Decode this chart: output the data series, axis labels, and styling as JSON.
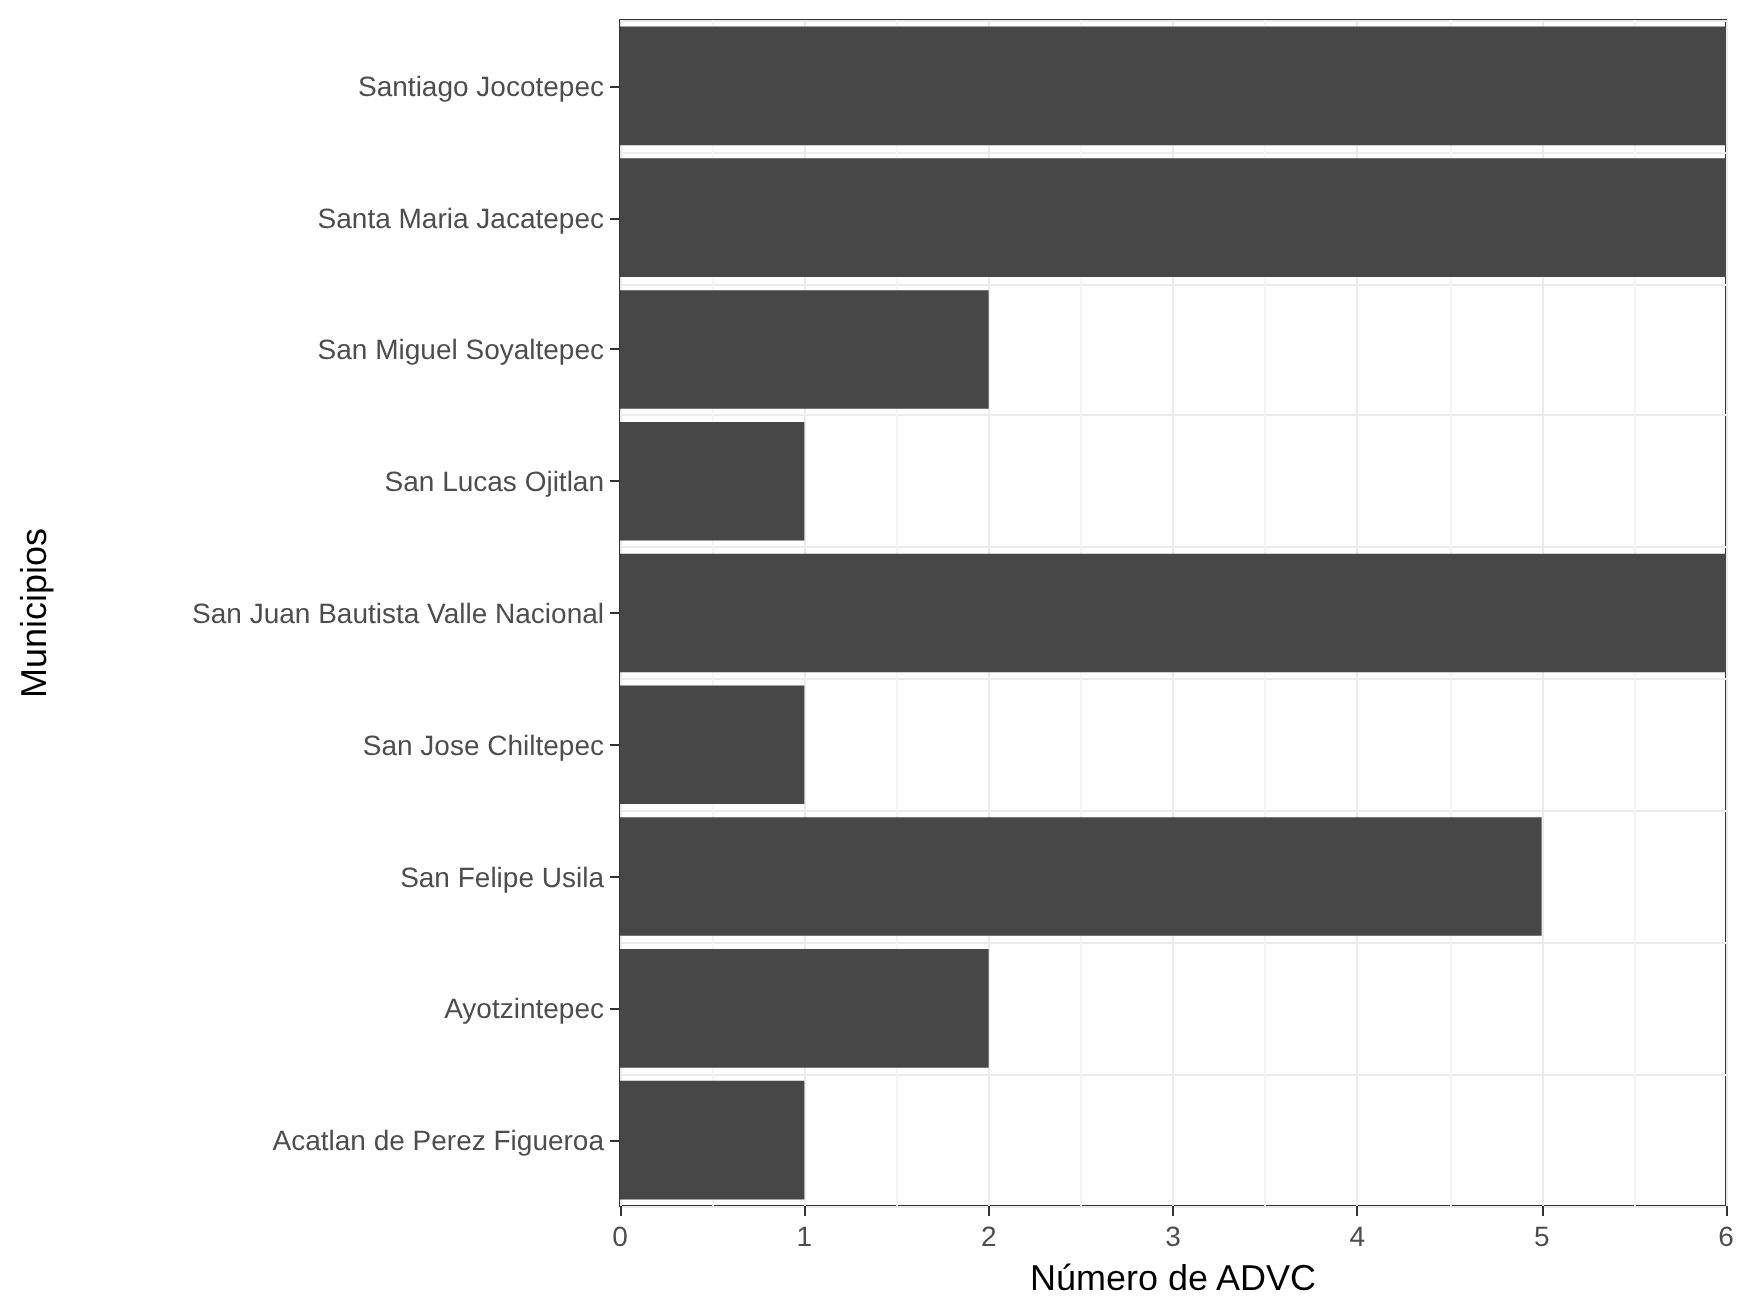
{
  "chart_data": {
    "type": "bar",
    "orientation": "horizontal",
    "xlabel": "Número de ADVC",
    "ylabel": "Municipios",
    "categories": [
      "Santiago Jocotepec",
      "Santa Maria Jacatepec",
      "San Miguel Soyaltepec",
      "San Lucas Ojitlan",
      "San Juan Bautista Valle Nacional",
      "San Jose Chiltepec",
      "San Felipe Usila",
      "Ayotzintepec",
      "Acatlan de Perez Figueroa"
    ],
    "values": [
      6,
      6,
      2,
      1,
      6,
      1,
      5,
      2,
      1
    ],
    "color": "#474747",
    "xlim": [
      0,
      6
    ],
    "xticks": [
      0,
      1,
      2,
      3,
      4,
      5,
      6
    ],
    "grid": true
  }
}
